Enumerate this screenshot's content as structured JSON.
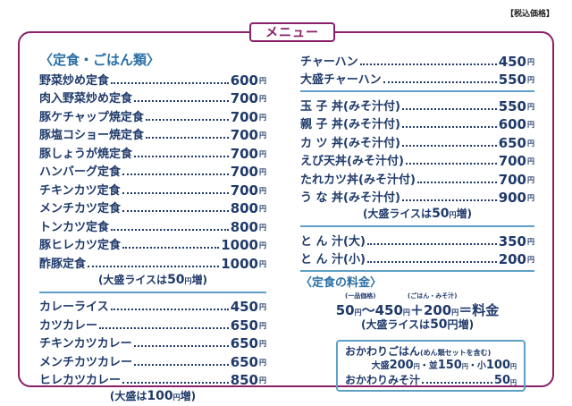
{
  "menu_title": "メニュー",
  "tax_note": "【税込価格】",
  "yen": "円",
  "left": {
    "section_title": "〈定食・ごはん類〉",
    "teishoku": [
      {
        "name": "野菜炒め定食",
        "price": "600"
      },
      {
        "name": "肉入野菜炒め定食",
        "price": "700"
      },
      {
        "name": "豚ケチャップ焼定食",
        "price": "700"
      },
      {
        "name": "豚塩コショー焼定食",
        "price": "700"
      },
      {
        "name": "豚しょうが焼定食",
        "price": "700"
      },
      {
        "name": "ハンバーグ定食",
        "price": "700"
      },
      {
        "name": "チキンカツ定食",
        "price": "700"
      },
      {
        "name": "メンチカツ定食",
        "price": "800"
      },
      {
        "name": "トンカツ定食",
        "price": "800"
      },
      {
        "name": "豚ヒレカツ定食",
        "price": "1000"
      },
      {
        "name": "酢豚定食",
        "price": "1000"
      }
    ],
    "teishoku_note": {
      "a": "(大盛ライスは",
      "num": "50",
      "yen": "円",
      "b": "増)"
    },
    "curry": [
      {
        "name": "カレーライス",
        "price": "450"
      },
      {
        "name": "カツカレー",
        "price": "650"
      },
      {
        "name": "チキンカツカレー",
        "price": "650"
      },
      {
        "name": "メンチカツカレー",
        "price": "650"
      },
      {
        "name": "ヒレカツカレー",
        "price": "850"
      }
    ],
    "curry_note": {
      "a": "(大盛は",
      "num": "100",
      "yen": "円",
      "b": "増)"
    }
  },
  "right": {
    "chahan": [
      {
        "name": "チャーハン",
        "price": "450"
      },
      {
        "name": "大盛チャーハン",
        "price": "550"
      }
    ],
    "donburi": [
      {
        "name": "玉 子 丼(みそ汁付)",
        "price": "550"
      },
      {
        "name": "親 子 丼(みそ汁付)",
        "price": "600"
      },
      {
        "name": "カ ツ 丼(みそ汁付)",
        "price": "650"
      },
      {
        "name": "えび天丼(みそ汁付)",
        "price": "700"
      },
      {
        "name": "たれカツ丼(みそ汁付)",
        "price": "700"
      },
      {
        "name": "う な 丼(みそ汁付)",
        "price": "900"
      }
    ],
    "donburi_note": {
      "a": "(大盛ライスは",
      "num": "50",
      "yen": "円",
      "b": "増)"
    },
    "tonjiru": [
      {
        "name": "と ん 汁(大)",
        "price": "350"
      },
      {
        "name": "と ん 汁(小)",
        "price": "200"
      }
    ],
    "teishoku_price": {
      "title": "〈定食の料金〉",
      "label_single": "(一品価格)",
      "label_rice": "(ごはん・みそ汁)",
      "from": "50",
      "to": "450",
      "plus": "200",
      "result": "料金",
      "note": {
        "a": "(大盛ライスは",
        "num": "50",
        "yen": "円",
        "b": "増)"
      }
    },
    "okawari": {
      "title": "おかわりごはん",
      "title_note": "(めん類セットを含む)",
      "omori_label": "大盛",
      "omori_price": "200",
      "nami_label": "並",
      "nami_price": "150",
      "sho_label": "小",
      "sho_price": "100",
      "misoshiru_label": "おかわりみそ汁",
      "misoshiru_price": "50"
    }
  }
}
